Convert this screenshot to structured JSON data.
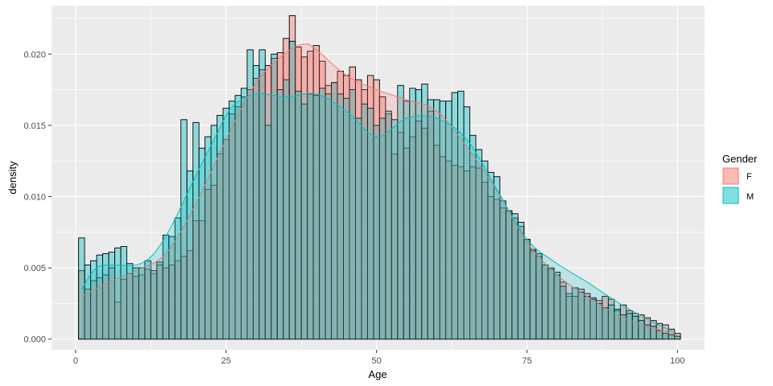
{
  "chart_data": {
    "type": "bar",
    "subtype": "overlaid histogram with density curves",
    "xlabel": "Age",
    "ylabel": "density",
    "xlim": [
      -4,
      104.5
    ],
    "ylim": [
      -0.00075,
      0.0234
    ],
    "x_ticks": [
      {
        "value": 0,
        "label": "0"
      },
      {
        "value": 25,
        "label": "25"
      },
      {
        "value": 50,
        "label": "50"
      },
      {
        "value": 75,
        "label": "75"
      },
      {
        "value": 100,
        "label": "100"
      }
    ],
    "y_ticks": [
      {
        "value": 0.0,
        "label": "0.000"
      },
      {
        "value": 0.005,
        "label": "0.005"
      },
      {
        "value": 0.01,
        "label": "0.010"
      },
      {
        "value": 0.015,
        "label": "0.015"
      },
      {
        "value": 0.02,
        "label": "0.020"
      }
    ],
    "bin_start": 0.5,
    "bin_width": 1,
    "grid": true,
    "legend": {
      "title": "Gender",
      "position": "right"
    },
    "series": [
      {
        "name": "F",
        "fill": "#F8766D",
        "line": "#F8766D",
        "histogram": [
          0.0048,
          0.0035,
          0.0041,
          0.0043,
          0.0045,
          0.005,
          0.0026,
          0.0042,
          0.0046,
          0.0044,
          0.0045,
          0.0049,
          0.0046,
          0.0052,
          0.005,
          0.0052,
          0.0055,
          0.0058,
          0.0062,
          0.0083,
          0.0083,
          0.0105,
          0.0108,
          0.013,
          0.014,
          0.0158,
          0.0163,
          0.017,
          0.0175,
          0.0183,
          0.0189,
          0.0192,
          0.0197,
          0.0201,
          0.0211,
          0.0227,
          0.0205,
          0.0198,
          0.0202,
          0.0206,
          0.0195,
          0.0178,
          0.018,
          0.0188,
          0.0185,
          0.0191,
          0.0182,
          0.0175,
          0.0185,
          0.0182,
          0.017,
          0.0158,
          0.013,
          0.0145,
          0.0134,
          0.0142,
          0.0153,
          0.0148,
          0.016,
          0.0136,
          0.0128,
          0.0125,
          0.0122,
          0.0121,
          0.0118,
          0.0121,
          0.012,
          0.011,
          0.01,
          0.0098,
          0.0092,
          0.009,
          0.0085,
          0.0079,
          0.007,
          0.0063,
          0.0058,
          0.0052,
          0.0049,
          0.0045,
          0.004,
          0.003,
          0.003,
          0.0035,
          0.0032,
          0.0029,
          0.0027,
          0.003,
          0.0028,
          0.002,
          0.0024,
          0.002,
          0.0018,
          0.0017,
          0.0015,
          0.0013,
          0.0011,
          0.001,
          0.0007,
          0.0004
        ],
        "density_x": [
          1,
          5,
          10,
          15,
          20,
          25,
          30,
          35,
          38,
          40,
          45,
          50,
          55,
          60,
          65,
          70,
          75,
          80,
          85,
          90,
          95,
          100
        ],
        "density_y": [
          0.003,
          0.0039,
          0.0048,
          0.006,
          0.0095,
          0.014,
          0.018,
          0.0201,
          0.0207,
          0.0203,
          0.0185,
          0.0175,
          0.0168,
          0.016,
          0.0135,
          0.0104,
          0.0068,
          0.0045,
          0.003,
          0.0017,
          0.0009,
          0.0003
        ]
      },
      {
        "name": "M",
        "fill": "#00BFC4",
        "line": "#00BFC4",
        "histogram": [
          0.0071,
          0.0052,
          0.0055,
          0.0059,
          0.006,
          0.0061,
          0.0064,
          0.0065,
          0.0053,
          0.005,
          0.005,
          0.0055,
          0.0048,
          0.0054,
          0.0073,
          0.0072,
          0.0085,
          0.0154,
          0.0118,
          0.0152,
          0.0134,
          0.0142,
          0.015,
          0.0157,
          0.0162,
          0.0167,
          0.0171,
          0.0176,
          0.0203,
          0.0192,
          0.0203,
          0.015,
          0.02,
          0.0175,
          0.0182,
          0.0209,
          0.0174,
          0.0165,
          0.0172,
          0.0171,
          0.0176,
          0.0172,
          0.018,
          0.0172,
          0.0169,
          0.0175,
          0.0155,
          0.0165,
          0.0162,
          0.015,
          0.0155,
          0.016,
          0.0154,
          0.0178,
          0.0167,
          0.0176,
          0.0175,
          0.0179,
          0.0168,
          0.0168,
          0.0167,
          0.0167,
          0.0173,
          0.0174,
          0.0163,
          0.0143,
          0.0133,
          0.0125,
          0.0117,
          0.0114,
          0.0097,
          0.009,
          0.0088,
          0.0082,
          0.007,
          0.0062,
          0.006,
          0.0052,
          0.005,
          0.0047,
          0.0037,
          0.0032,
          0.0036,
          0.0033,
          0.003,
          0.0028,
          0.0025,
          0.0022,
          0.0024,
          0.0021,
          0.0017,
          0.0018,
          0.0016,
          0.0013,
          0.001,
          0.0009,
          0.0006,
          0.0004,
          0.0003,
          0.0002
        ],
        "density_x": [
          1,
          3,
          5,
          10,
          13,
          16,
          20,
          23,
          26,
          30,
          35,
          40,
          45,
          50,
          55,
          60,
          65,
          70,
          75,
          80,
          85,
          90,
          95,
          100
        ],
        "density_y": [
          0.0035,
          0.0048,
          0.0052,
          0.0052,
          0.006,
          0.008,
          0.0115,
          0.014,
          0.0163,
          0.0172,
          0.017,
          0.0172,
          0.016,
          0.0142,
          0.0155,
          0.0155,
          0.014,
          0.0105,
          0.007,
          0.0053,
          0.004,
          0.0026,
          0.0014,
          0.0004
        ]
      }
    ]
  }
}
